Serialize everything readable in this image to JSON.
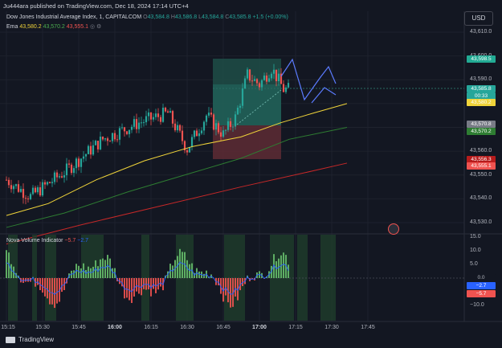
{
  "header": {
    "published": "Ju444ara published on TradingView.com, Dec 18, 2024 17:14 UTC+4",
    "currency": "USD"
  },
  "legend": {
    "symbol": "Dow Jones Industrial Average Index, 1, CAPITALCOM",
    "o_label": "O",
    "o": "43,584.8",
    "h_label": "H",
    "h": "43,586.8",
    "l_label": "L",
    "l": "43,584.8",
    "c_label": "C",
    "c": "43,585.8",
    "change": "+1.5 (+0.00%)",
    "ema_label": "Ema",
    "ema1": "43,580.2",
    "ema2": "43,570.2",
    "ema3": "43,555.1"
  },
  "indicator": {
    "name": "Nova Volume Indicator",
    "v1": "−5.7",
    "v2": "−2.7"
  },
  "price_axis": [
    "43,610.0",
    "43,600.0",
    "43,590.0",
    "43,580.0",
    "43,570.0",
    "43,560.0",
    "43,550.0",
    "43,540.0",
    "43,530.0"
  ],
  "volume_axis": [
    "15.0",
    "10.0",
    "5.0",
    "0.0",
    "−10.0"
  ],
  "price_tags": [
    {
      "text": "43,598.5",
      "color": "#22ab94"
    },
    {
      "text": "43,585.8",
      "color": "#26a69a"
    },
    {
      "text": "00:33",
      "color": "#26a69a"
    },
    {
      "text": "43,580.2",
      "color": "#f0d43a"
    },
    {
      "text": "43,570.8",
      "color": "#787b86"
    },
    {
      "text": "43,570.2",
      "color": "#2e7d32"
    },
    {
      "text": "43,556.3",
      "color": "#b71c1c"
    },
    {
      "text": "43,555.1",
      "color": "#ef5350"
    }
  ],
  "volume_tags": [
    {
      "text": "0.0",
      "color": "#131722"
    },
    {
      "text": "−2.7",
      "color": "#2962ff"
    },
    {
      "text": "−5.7",
      "color": "#ef5350"
    }
  ],
  "time_axis": [
    {
      "text": "15:15",
      "bold": false
    },
    {
      "text": "15:30",
      "bold": false
    },
    {
      "text": "15:45",
      "bold": false
    },
    {
      "text": "16:00",
      "bold": true
    },
    {
      "text": "16:15",
      "bold": false
    },
    {
      "text": "16:30",
      "bold": false
    },
    {
      "text": "16:45",
      "bold": false
    },
    {
      "text": "17:00",
      "bold": true
    },
    {
      "text": "17:15",
      "bold": false
    },
    {
      "text": "17:30",
      "bold": false
    },
    {
      "text": "17:45",
      "bold": false
    }
  ],
  "footer": {
    "brand": "TradingView"
  },
  "colors": {
    "background": "#131722",
    "up": "#26a69a",
    "down": "#ef5350",
    "ema_fast": "#f0d43a",
    "ema_mid": "#2e7d32",
    "ema_slow": "#c62828",
    "zone_green": "#1e4d47",
    "zone_red": "#5a2a33",
    "pattern": "#5b7bff"
  },
  "icons": [
    "tradingview-logo-icon",
    "eye-icon",
    "settings-icon",
    "us-flag-icon"
  ]
}
